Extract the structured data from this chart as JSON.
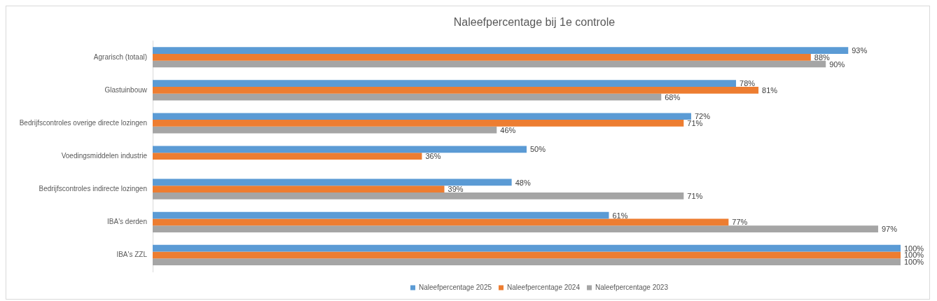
{
  "chart_data": {
    "type": "bar",
    "orientation": "horizontal",
    "title": "Naleefpercentage bij 1e controle",
    "categories": [
      "Agrarisch (totaal)",
      "Glastuinbouw",
      "Bedrijfscontroles overige directe lozingen",
      "Voedingsmiddelen industrie",
      "Bedrijfscontroles indirecte lozingen",
      "IBA's derden",
      "IBA's ZZL"
    ],
    "series": [
      {
        "name": "Naleefpercentage 2025",
        "color": "#5b9bd5",
        "values": [
          93,
          78,
          72,
          50,
          48,
          61,
          100
        ],
        "value_labels": [
          "93%",
          "78%",
          "72%",
          "50%",
          "48%",
          "61%",
          "100%"
        ]
      },
      {
        "name": "Naleefpercentage 2024",
        "color": "#ed7d31",
        "values": [
          88,
          81,
          71,
          36,
          39,
          77,
          100
        ],
        "value_labels": [
          "88%",
          "81%",
          "71%",
          "36%",
          "39%",
          "77%",
          "100%"
        ]
      },
      {
        "name": "Naleefpercentage 2023",
        "color": "#a5a5a5",
        "values": [
          90,
          68,
          46,
          null,
          71,
          97,
          100
        ],
        "value_labels": [
          "90%",
          "68%",
          "46%",
          null,
          "71%",
          "97%",
          "100%"
        ]
      }
    ],
    "xlim": [
      0,
      100
    ],
    "tick_labels": "y",
    "legend": "bottom"
  }
}
